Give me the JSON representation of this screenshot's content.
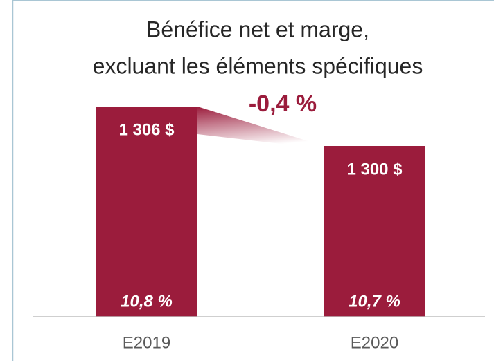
{
  "chart_data": {
    "type": "bar",
    "title": [
      "Bénéfice net et marge,",
      "excluant les éléments spécifiques"
    ],
    "categories": [
      "E2019",
      "E2020"
    ],
    "values": [
      1306,
      1300
    ],
    "value_labels": [
      "1 306 $",
      "1 300 $"
    ],
    "margin_values": [
      10.8,
      10.7
    ],
    "margin_labels": [
      "10,8 %",
      "10,7 %"
    ],
    "annotation": "-0,4 %",
    "color": "#9b1c3c",
    "ylim": [
      1274,
      1310
    ]
  }
}
